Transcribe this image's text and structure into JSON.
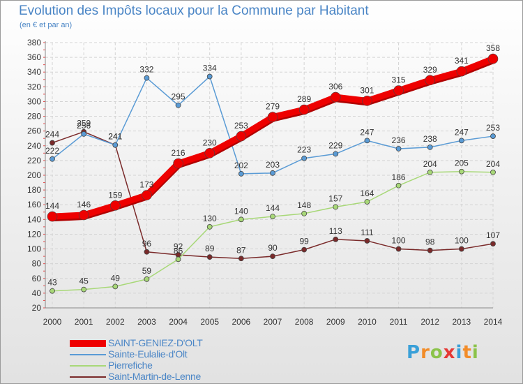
{
  "chart_data": {
    "type": "line",
    "title": "Evolution des Impôts locaux pour la Commune par Habitant",
    "subtitle": "(en € et par an)",
    "categories": [
      "2000",
      "2001",
      "2002",
      "2003",
      "2004",
      "2005",
      "2006",
      "2007",
      "2008",
      "2009",
      "2010",
      "2011",
      "2012",
      "2013",
      "2014"
    ],
    "ylim": [
      20,
      380
    ],
    "yticks": [
      20,
      40,
      60,
      80,
      100,
      120,
      140,
      160,
      180,
      200,
      220,
      240,
      260,
      280,
      300,
      320,
      340,
      360,
      380
    ],
    "grid": true,
    "legend_position": "bottom-left",
    "series": [
      {
        "name": "SAINT-GENIEZ-D'OLT",
        "color": "#ee0000",
        "values": [
          144,
          146,
          159,
          173,
          216,
          230,
          253,
          279,
          289,
          306,
          301,
          315,
          329,
          341,
          358
        ]
      },
      {
        "name": "Sainte-Eulalie-d'Olt",
        "color": "#5a9bd5",
        "values": [
          222,
          256,
          241,
          332,
          295,
          334,
          202,
          203,
          223,
          229,
          247,
          236,
          238,
          247,
          253
        ]
      },
      {
        "name": "Pierrefiche",
        "color": "#a8d878",
        "values": [
          43,
          45,
          49,
          59,
          86,
          130,
          140,
          144,
          148,
          157,
          164,
          186,
          204,
          205,
          204
        ]
      },
      {
        "name": "Saint-Martin-de-Lenne",
        "color": "#7a2a2a",
        "values": [
          244,
          259,
          241,
          96,
          92,
          89,
          87,
          90,
          99,
          113,
          111,
          100,
          98,
          100,
          107
        ]
      }
    ]
  },
  "logo": {
    "letters": [
      "P",
      "r",
      "o",
      "x",
      "i",
      "t",
      "i"
    ],
    "colors": [
      "#3aa0d8",
      "#f28c28",
      "#8bc34a",
      "#e53935",
      "#3aa0d8",
      "#f28c28",
      "#8bc34a"
    ]
  }
}
